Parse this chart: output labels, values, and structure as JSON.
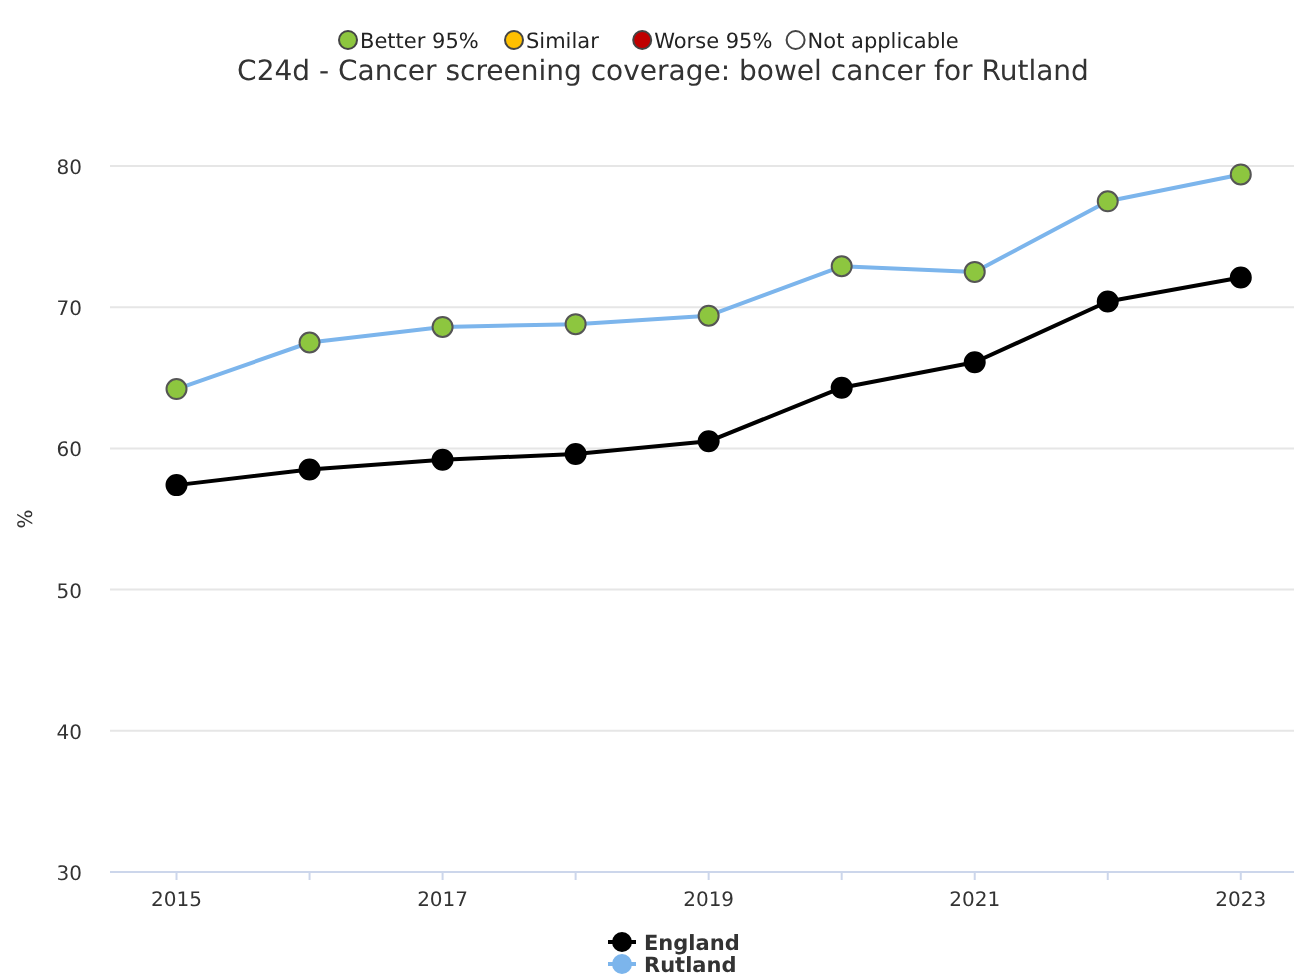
{
  "chart_data": {
    "type": "line",
    "title": "C24d - Cancer screening coverage: bowel cancer for Rutland",
    "ylabel": "%",
    "x": [
      2015,
      2016,
      2017,
      2018,
      2019,
      2020,
      2021,
      2022,
      2023
    ],
    "xlim": [
      2014.5,
      2023.4
    ],
    "xticks": [
      2015,
      {
        "value": 2016,
        "label": null
      },
      2017,
      {
        "value": 2018,
        "label": null
      },
      2019,
      {
        "value": 2020,
        "label": null
      },
      2021,
      {
        "value": 2022,
        "label": null
      },
      2023
    ],
    "annotations": [
      "Better 95%",
      "Similar",
      "Worse 95%",
      "Not applicable"
    ],
    "ylim": [
      30,
      80
    ],
    "yticks": [
      30,
      40,
      50,
      60,
      70,
      80
    ],
    "grid": "y",
    "legend": "bottom",
    "marker": "circle",
    "line_style": "solid",
    "series": [
      {
        "name": "England",
        "color": "#000000",
        "values": [
          57.4,
          58.5,
          59.2,
          59.6,
          60.5,
          64.3,
          66.1,
          70.4,
          72.1
        ]
      },
      {
        "name": "Rutland",
        "color": "#7cb5ec",
        "colors": [
          "#8dc63f",
          "#8dc63f",
          "#8dc63f",
          "#8dc63f",
          "#8dc63f",
          "#8dc63f",
          "#8dc63f",
          "#8dc63f",
          "#8dc63f"
        ],
        "values": [
          64.2,
          67.5,
          68.6,
          68.8,
          69.4,
          72.9,
          72.5,
          77.5,
          79.4
        ]
      }
    ]
  }
}
